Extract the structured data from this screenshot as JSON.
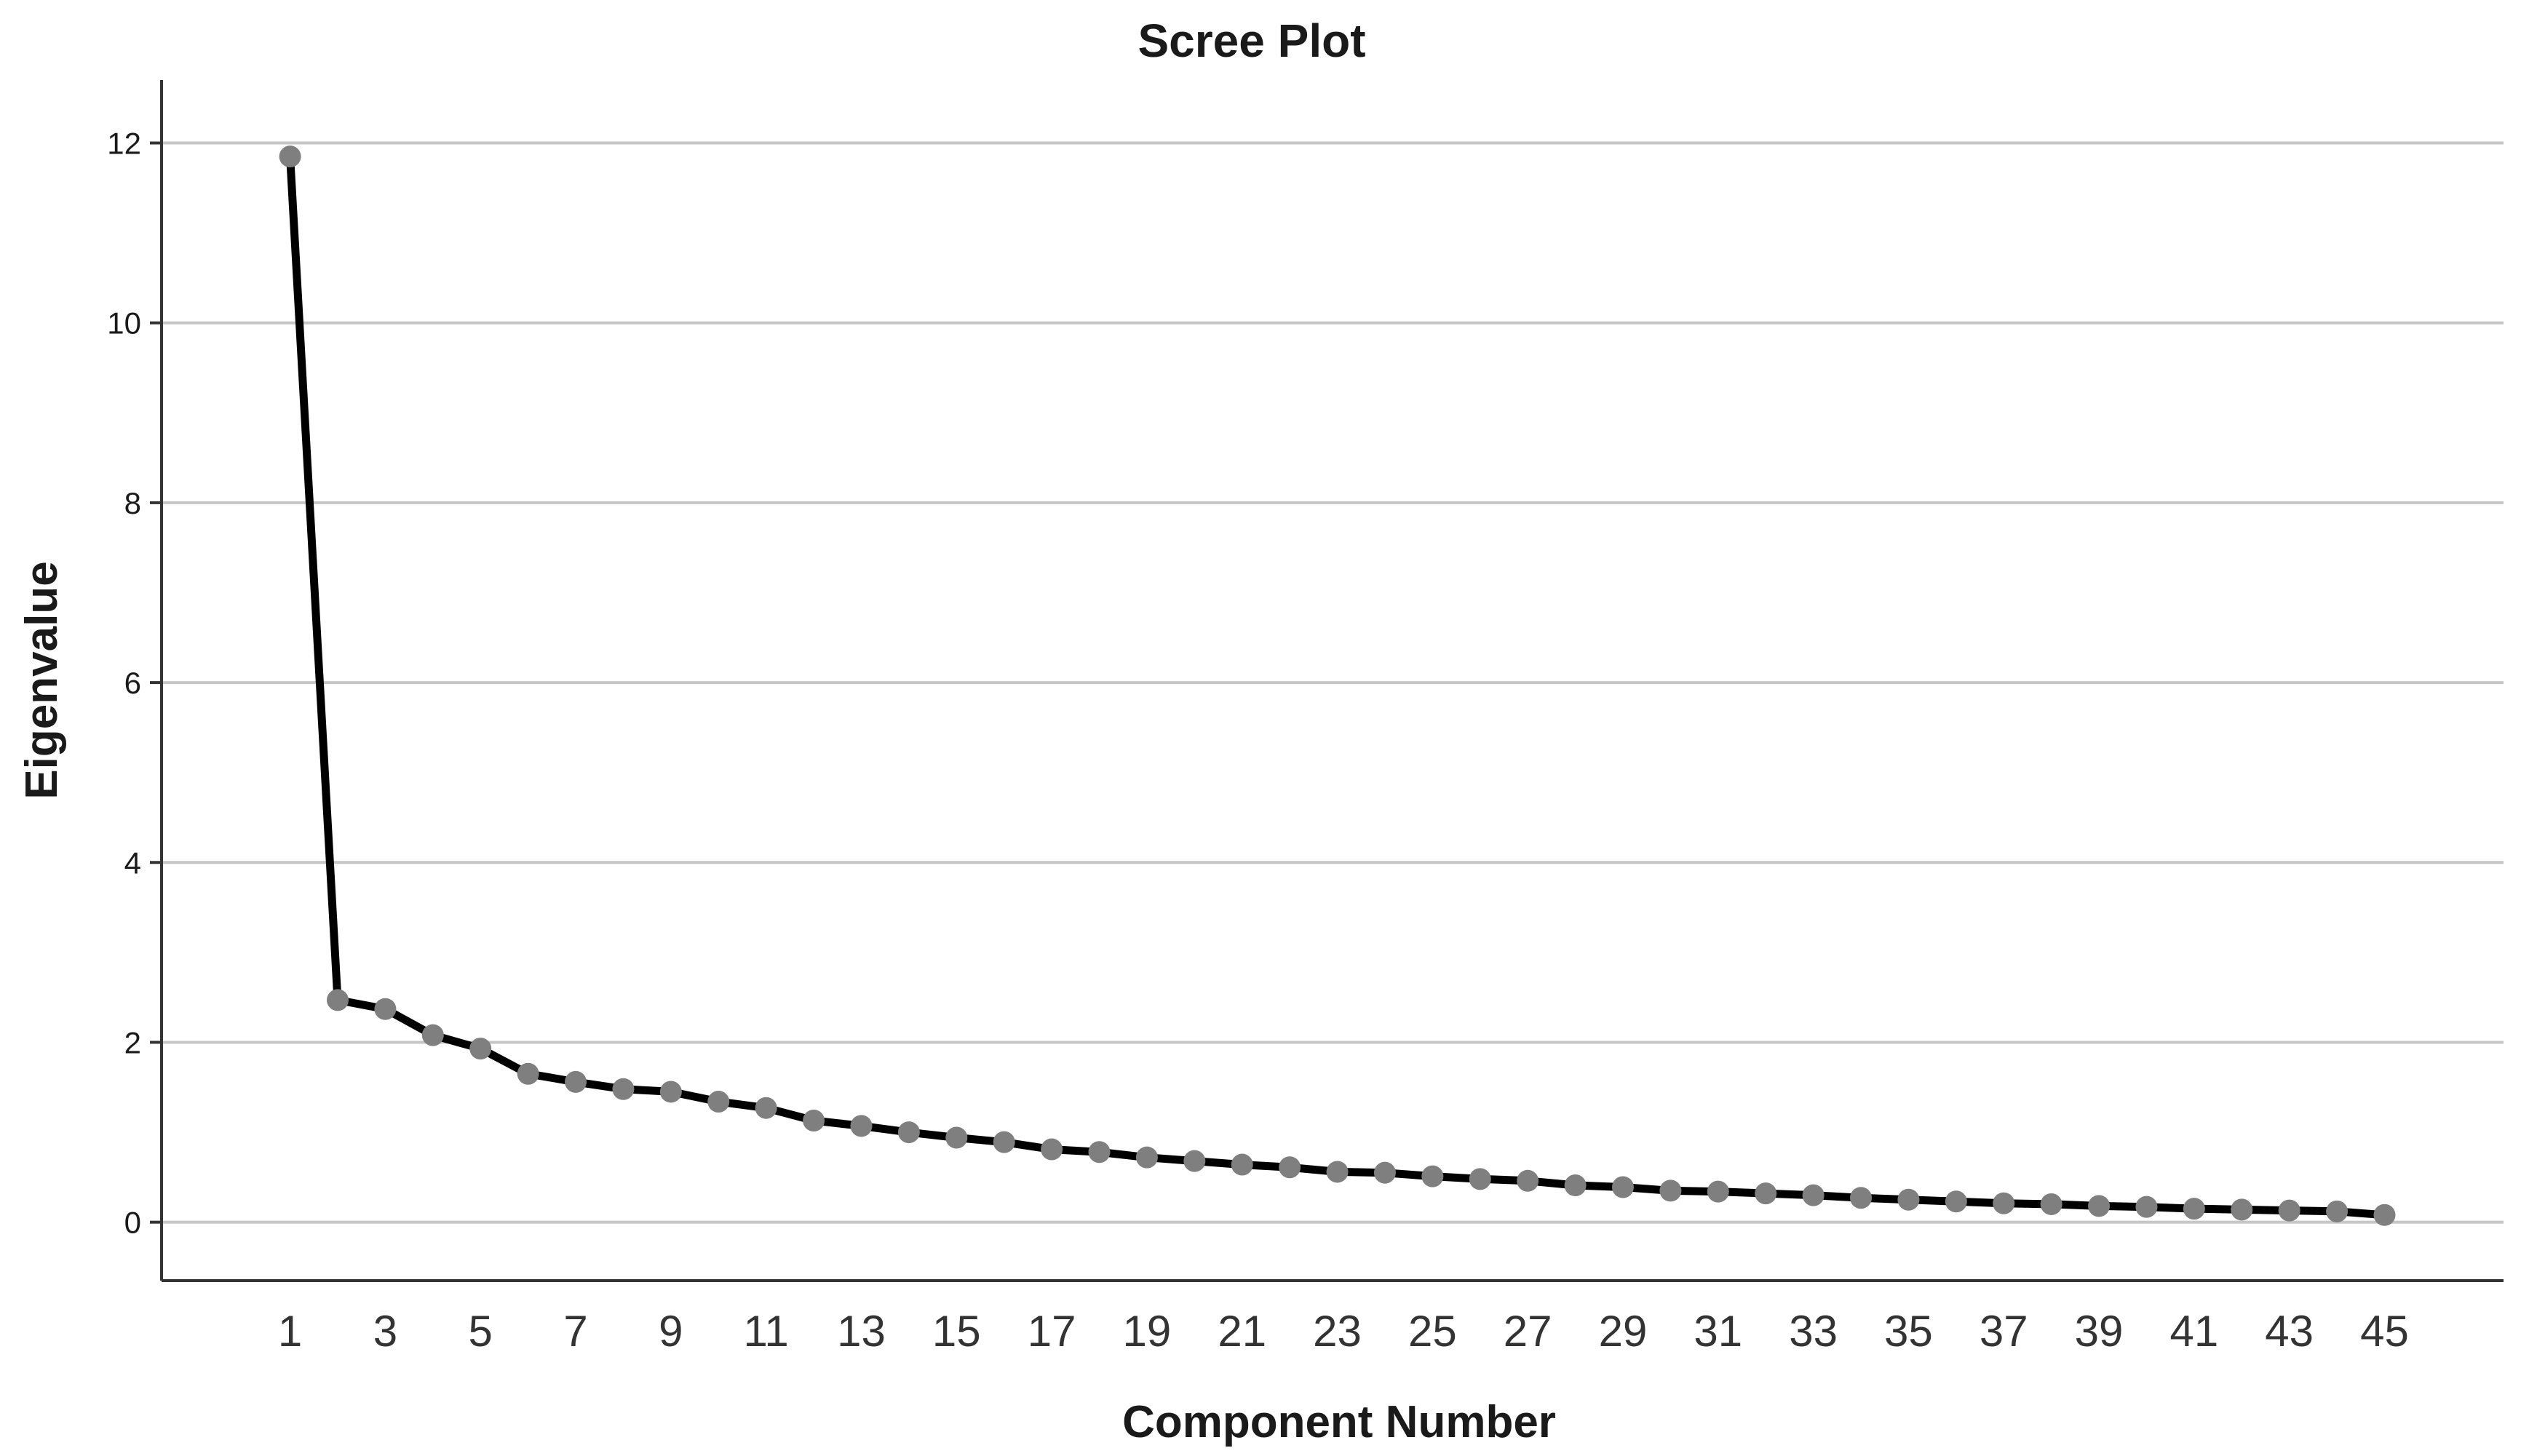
{
  "chart_data": {
    "type": "line",
    "title": "Scree Plot",
    "xlabel": "Component Number",
    "ylabel": "Eigenvalue",
    "x": [
      1,
      2,
      3,
      4,
      5,
      6,
      7,
      8,
      9,
      10,
      11,
      12,
      13,
      14,
      15,
      16,
      17,
      18,
      19,
      20,
      21,
      22,
      23,
      24,
      25,
      26,
      27,
      28,
      29,
      30,
      31,
      32,
      33,
      34,
      35,
      36,
      37,
      38,
      39,
      40,
      41,
      42,
      43,
      44,
      45
    ],
    "x_tick_labels": [
      "1",
      "3",
      "5",
      "7",
      "9",
      "11",
      "13",
      "15",
      "17",
      "19",
      "21",
      "23",
      "25",
      "27",
      "29",
      "31",
      "33",
      "35",
      "37",
      "39",
      "41",
      "43",
      "45"
    ],
    "x_tick_values": [
      1,
      3,
      5,
      7,
      9,
      11,
      13,
      15,
      17,
      19,
      21,
      23,
      25,
      27,
      29,
      31,
      33,
      35,
      37,
      39,
      41,
      43,
      45
    ],
    "xlim": [
      -1.7,
      47.5
    ],
    "y_tick_labels": [
      "0",
      "2",
      "4",
      "6",
      "8",
      "10",
      "12"
    ],
    "y_tick_values": [
      0,
      2,
      4,
      6,
      8,
      10,
      12
    ],
    "ylim": [
      -0.65,
      12.7
    ],
    "grid": "horizontal",
    "series": [
      {
        "values": [
          11.85,
          2.47,
          2.37,
          2.08,
          1.93,
          1.65,
          1.56,
          1.48,
          1.45,
          1.34,
          1.27,
          1.13,
          1.07,
          1.0,
          0.94,
          0.89,
          0.81,
          0.78,
          0.72,
          0.68,
          0.64,
          0.61,
          0.56,
          0.55,
          0.51,
          0.48,
          0.46,
          0.41,
          0.39,
          0.35,
          0.34,
          0.32,
          0.3,
          0.27,
          0.25,
          0.23,
          0.21,
          0.2,
          0.18,
          0.17,
          0.15,
          0.14,
          0.13,
          0.12,
          0.08
        ],
        "line_color": "#000000",
        "marker_color": "#7f7f7f"
      }
    ]
  }
}
